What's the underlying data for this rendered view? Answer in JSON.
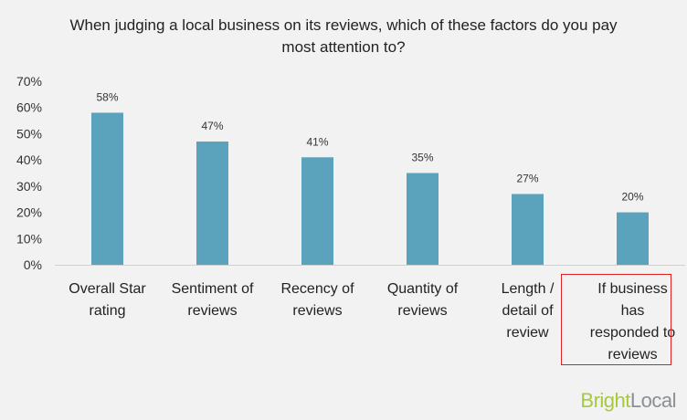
{
  "chart_data": {
    "type": "bar",
    "title": "When judging a local business on its reviews, which of these factors do you pay most attention to?",
    "categories": [
      [
        "Overall Star",
        "rating"
      ],
      [
        "Sentiment of",
        "reviews"
      ],
      [
        "Recency of",
        "reviews"
      ],
      [
        "Quantity of",
        "reviews"
      ],
      [
        "Length /",
        "detail of",
        "review"
      ],
      [
        "If business",
        "has",
        "responded to",
        "reviews"
      ]
    ],
    "values": [
      58,
      47,
      41,
      35,
      27,
      20
    ],
    "value_labels": [
      "58%",
      "47%",
      "41%",
      "35%",
      "27%",
      "20%"
    ],
    "yticks": [
      "0%",
      "10%",
      "20%",
      "30%",
      "40%",
      "50%",
      "60%",
      "70%"
    ],
    "ylim": [
      0,
      70
    ],
    "xlabel": "",
    "ylabel": "",
    "grid": false,
    "bar_color": "#5ba2bc",
    "highlighted_category_index": 5,
    "highlight_color": "#e02020"
  },
  "logo": {
    "part1": "Bright",
    "part2": "Local"
  }
}
